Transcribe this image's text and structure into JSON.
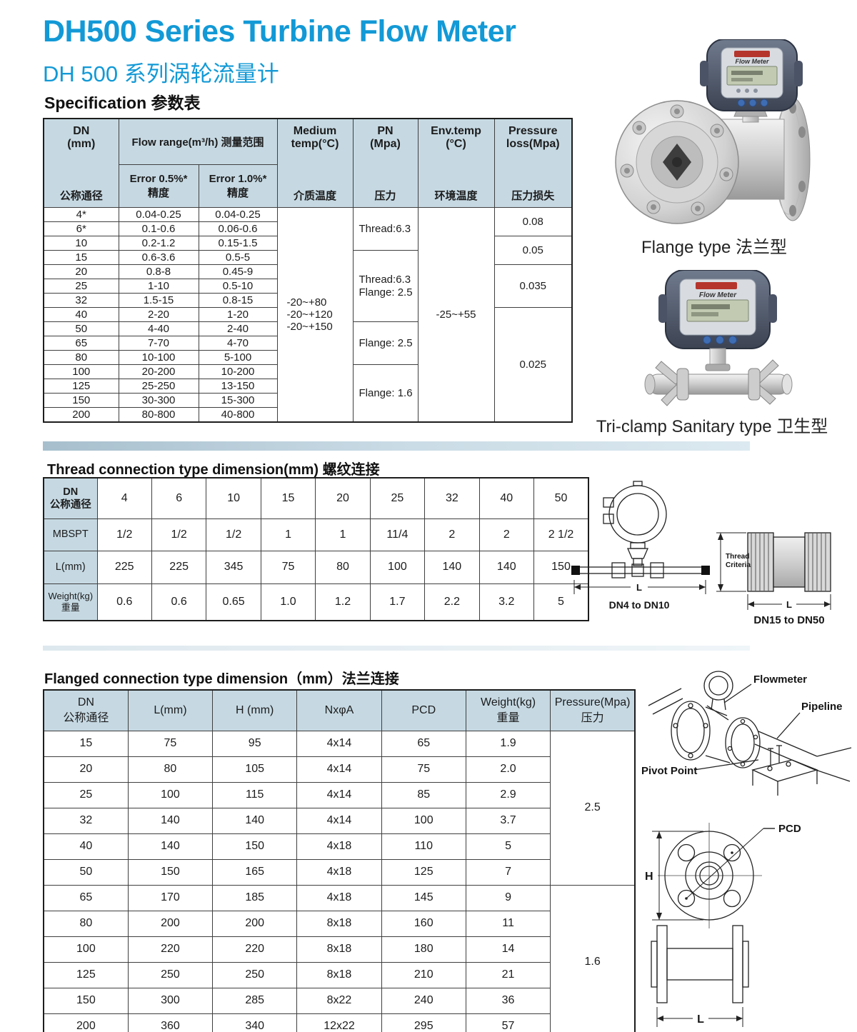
{
  "colors": {
    "accent": "#1299d6",
    "table_header_bg": "#c6d9e3",
    "table_border": "#3f3f3f"
  },
  "header": {
    "title_en": "DH500 Series Turbine Flow Meter",
    "title_cn": "DH 500  系列涡轮流量计"
  },
  "spec": {
    "heading": "Specification 参数表",
    "columns": {
      "dn_en": "DN\n(mm)",
      "dn_cn": "公称通径",
      "flow_range": "Flow range(m³/h) 测量范围",
      "error_05": "Error 0.5%*\n精度",
      "error_10": "Error 1.0%*\n精度",
      "medium_en": "Medium\ntemp(°C)",
      "medium_cn": "介质温度",
      "pn_en": "PN\n(Mpa)",
      "pn_cn": "压力",
      "env_en": "Env.temp\n(°C)",
      "env_cn": "环境温度",
      "loss_en": "Pressure\nloss(Mpa)",
      "loss_cn": "压力损失"
    },
    "rows": [
      [
        "4*",
        "0.04-0.25",
        "0.04-0.25"
      ],
      [
        "6*",
        "0.1-0.6",
        "0.06-0.6"
      ],
      [
        "10",
        "0.2-1.2",
        "0.15-1.5"
      ],
      [
        "15",
        "0.6-3.6",
        "0.5-5"
      ],
      [
        "20",
        "0.8-8",
        "0.45-9"
      ],
      [
        "25",
        "1-10",
        "0.5-10"
      ],
      [
        "32",
        "1.5-15",
        "0.8-15"
      ],
      [
        "40",
        "2-20",
        "1-20"
      ],
      [
        "50",
        "4-40",
        "2-40"
      ],
      [
        "65",
        "7-70",
        "4-70"
      ],
      [
        "80",
        "10-100",
        "5-100"
      ],
      [
        "100",
        "20-200",
        "10-200"
      ],
      [
        "125",
        "25-250",
        "13-150"
      ],
      [
        "150",
        "30-300",
        "15-300"
      ],
      [
        "200",
        "80-800",
        "40-800"
      ]
    ],
    "medium_temp": "-20~+80\n-20~+120\n-20~+150",
    "env_temp": "-25~+55",
    "pn_cells": [
      {
        "text": "Thread:6.3",
        "start": 0,
        "span": 3
      },
      {
        "text": "Thread:6.3\nFlange: 2.5",
        "start": 3,
        "span": 5
      },
      {
        "text": "Flange: 2.5",
        "start": 8,
        "span": 3
      },
      {
        "text": "Flange: 1.6",
        "start": 11,
        "span": 4
      }
    ],
    "loss_cells": [
      {
        "text": "0.08",
        "start": 0,
        "span": 2
      },
      {
        "text": "0.05",
        "start": 2,
        "span": 2
      },
      {
        "text": "0.035",
        "start": 4,
        "span": 3
      },
      {
        "text": "0.025",
        "start": 7,
        "span": 8
      }
    ]
  },
  "photos": {
    "display_brand": "Flow Meter",
    "flange_caption": "Flange type 法兰型",
    "triclamp_caption": "Tri-clamp Sanitary type 卫生型"
  },
  "thread": {
    "heading": "Thread connection type dimension(mm) 螺纹连接",
    "rows": [
      {
        "label": "DN\n公称通径",
        "values": [
          "4",
          "6",
          "10",
          "15",
          "20",
          "25",
          "32",
          "40",
          "50"
        ]
      },
      {
        "label": "MBSPT",
        "values": [
          "1/2",
          "1/2",
          "1/2",
          "1",
          "1",
          "11/4",
          "2",
          "2",
          "2 1/2"
        ]
      },
      {
        "label": "L(mm)",
        "values": [
          "225",
          "225",
          "345",
          "75",
          "80",
          "100",
          "140",
          "140",
          "150"
        ]
      },
      {
        "label": "Weight(kg)\n重量",
        "values": [
          "0.6",
          "0.6",
          "0.65",
          "1.0",
          "1.2",
          "1.7",
          "2.2",
          "3.2",
          "5"
        ]
      }
    ],
    "diagrams": {
      "left_label": "DN4 to DN10",
      "right_label": "DN15 to DN50",
      "criteria_1": "Thread",
      "criteria_2": "Criteria",
      "dim_l": "L"
    }
  },
  "flanged": {
    "heading": "Flanged connection type dimension（mm）法兰连接",
    "headers": [
      "DN\n公称通径",
      "L(mm)",
      "H (mm)",
      "NxφA",
      "PCD",
      "Weight(kg)\n重量",
      "Pressure(Mpa)\n压力"
    ],
    "rows": [
      [
        "15",
        "75",
        "95",
        "4x14",
        "65",
        "1.9"
      ],
      [
        "20",
        "80",
        "105",
        "4x14",
        "75",
        "2.0"
      ],
      [
        "25",
        "100",
        "115",
        "4x14",
        "85",
        "2.9"
      ],
      [
        "32",
        "140",
        "140",
        "4x14",
        "100",
        "3.7"
      ],
      [
        "40",
        "140",
        "150",
        "4x18",
        "110",
        "5"
      ],
      [
        "50",
        "150",
        "165",
        "4x18",
        "125",
        "7"
      ],
      [
        "65",
        "170",
        "185",
        "4x18",
        "145",
        "9"
      ],
      [
        "80",
        "200",
        "200",
        "8x18",
        "160",
        "11"
      ],
      [
        "100",
        "220",
        "220",
        "8x18",
        "180",
        "14"
      ],
      [
        "125",
        "250",
        "250",
        "8x18",
        "210",
        "21"
      ],
      [
        "150",
        "300",
        "285",
        "8x22",
        "240",
        "36"
      ],
      [
        "200",
        "360",
        "340",
        "12x22",
        "295",
        "57"
      ]
    ],
    "pressure_cells": [
      {
        "text": "2.5",
        "start": 0,
        "span": 6
      },
      {
        "text": "1.6",
        "start": 6,
        "span": 6
      }
    ],
    "diagrams": {
      "flowmeter": "Flowmeter",
      "pipeline": "Pipeline",
      "pivot_point": "Pivot Point",
      "pcd": "PCD",
      "dim_h": "H",
      "dim_l": "L"
    }
  }
}
